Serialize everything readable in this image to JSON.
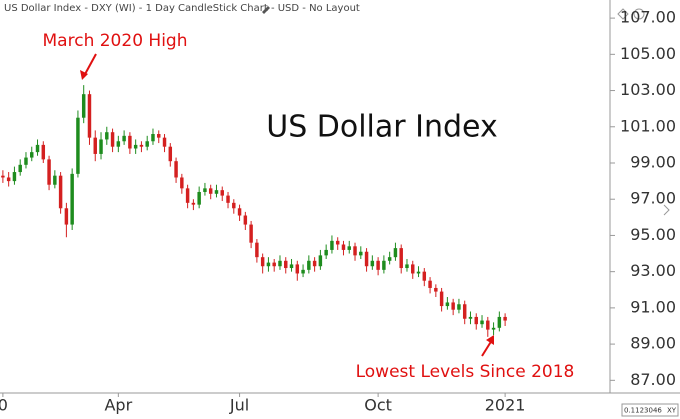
{
  "chart_data": {
    "type": "candlestick",
    "header": "US Dollar Index - DXY (WI) - 1 Day CandleStick Chart - USD - No Layout",
    "title": "US Dollar Index",
    "annotations": [
      "March 2020 High",
      "Lowest Levels Since 2018"
    ],
    "corner_text": [
      "0.1123046",
      "XY"
    ],
    "up_color": "#1e8c1e",
    "down_color": "#d42020",
    "categories": [
      "0",
      null,
      null,
      null,
      null,
      null,
      null,
      null,
      null,
      null,
      null,
      null,
      null,
      null,
      null,
      null,
      null,
      null,
      null,
      null,
      "Apr",
      null,
      null,
      null,
      null,
      null,
      null,
      null,
      null,
      null,
      null,
      null,
      null,
      null,
      null,
      null,
      null,
      null,
      null,
      null,
      null,
      "Jul",
      null,
      null,
      null,
      null,
      null,
      null,
      null,
      null,
      null,
      null,
      null,
      null,
      null,
      null,
      null,
      null,
      null,
      null,
      null,
      null,
      null,
      null,
      null,
      "Oct",
      null,
      null,
      null,
      null,
      null,
      null,
      null,
      null,
      null,
      null,
      null,
      null,
      null,
      null,
      null,
      null,
      null,
      null,
      null,
      null,
      null,
      "2021"
    ],
    "open": [
      98.3,
      98.2,
      98.0,
      98.5,
      98.9,
      99.3,
      99.6,
      100.0,
      99.2,
      97.8,
      98.3,
      96.5,
      95.6,
      98.4,
      101.5,
      102.8,
      100.4,
      99.5,
      100.3,
      100.7,
      99.9,
      100.2,
      100.5,
      99.8,
      100.0,
      99.9,
      100.2,
      100.6,
      100.4,
      99.9,
      99.1,
      98.2,
      97.6,
      96.8,
      96.7,
      97.4,
      97.6,
      97.3,
      97.5,
      97.2,
      96.8,
      96.5,
      96.1,
      95.6,
      94.6,
      93.8,
      93.3,
      93.5,
      93.3,
      93.6,
      93.2,
      93.4,
      92.9,
      93.1,
      93.6,
      93.3,
      93.9,
      94.2,
      94.7,
      94.5,
      94.2,
      94.4,
      93.9,
      94.1,
      93.3,
      93.6,
      93.1,
      93.6,
      93.8,
      94.3,
      93.2,
      93.4,
      92.9,
      93.0,
      92.5,
      92.1,
      91.9,
      91.1,
      91.3,
      90.9,
      91.2,
      90.4,
      90.5,
      90.1,
      90.3,
      89.8,
      89.9,
      90.5
    ],
    "high": [
      98.6,
      98.5,
      98.8,
      99.2,
      99.6,
      99.9,
      100.3,
      100.2,
      99.4,
      98.6,
      98.5,
      96.8,
      98.7,
      101.9,
      103.3,
      103.0,
      100.8,
      100.7,
      101.0,
      100.9,
      100.5,
      100.8,
      100.7,
      100.3,
      100.2,
      100.5,
      100.9,
      100.8,
      100.6,
      100.1,
      99.3,
      98.4,
      97.8,
      97.0,
      97.7,
      97.9,
      97.8,
      97.8,
      97.7,
      97.4,
      97.0,
      96.7,
      96.3,
      95.8,
      94.8,
      94.0,
      93.8,
      93.7,
      93.9,
      93.8,
      93.7,
      93.6,
      93.4,
      93.9,
      93.8,
      94.2,
      94.5,
      95.0,
      94.9,
      94.7,
      94.7,
      94.6,
      94.4,
      94.3,
      93.9,
      93.8,
      93.9,
      94.1,
      94.6,
      94.5,
      93.7,
      93.6,
      93.3,
      93.2,
      92.7,
      92.3,
      92.1,
      91.6,
      91.5,
      91.5,
      91.4,
      90.8,
      90.7,
      90.6,
      90.5,
      90.2,
      90.8,
      90.7
    ],
    "low": [
      97.9,
      97.7,
      97.8,
      98.3,
      98.7,
      99.1,
      99.4,
      99.0,
      97.5,
      97.6,
      96.2,
      94.9,
      95.3,
      98.2,
      101.2,
      100.0,
      99.1,
      99.2,
      100.0,
      99.6,
      99.6,
      100.0,
      99.5,
      99.5,
      99.6,
      99.7,
      100.0,
      100.1,
      99.6,
      98.8,
      97.9,
      97.3,
      96.5,
      96.4,
      96.5,
      97.2,
      97.0,
      97.1,
      96.9,
      96.5,
      96.2,
      95.8,
      95.3,
      94.3,
      93.5,
      92.9,
      93.0,
      93.0,
      93.1,
      92.9,
      93.0,
      92.5,
      92.7,
      92.9,
      93.0,
      93.1,
      93.7,
      94.0,
      94.2,
      93.9,
      94.0,
      93.6,
      93.7,
      93.0,
      93.1,
      92.8,
      92.9,
      93.4,
      93.6,
      92.9,
      93.0,
      92.6,
      92.7,
      92.2,
      91.8,
      91.6,
      90.8,
      90.9,
      90.6,
      90.7,
      90.1,
      90.1,
      89.8,
      89.9,
      89.4,
      89.5,
      89.7,
      90.0
    ],
    "close": [
      98.2,
      98.0,
      98.5,
      98.9,
      99.3,
      99.6,
      100.0,
      99.2,
      97.8,
      98.3,
      96.5,
      95.6,
      98.4,
      101.5,
      102.8,
      100.4,
      99.5,
      100.3,
      100.7,
      99.9,
      100.2,
      100.5,
      99.8,
      100.0,
      99.9,
      100.2,
      100.6,
      100.4,
      99.9,
      99.1,
      98.2,
      97.6,
      96.8,
      96.7,
      97.4,
      97.6,
      97.3,
      97.5,
      97.2,
      96.8,
      96.5,
      96.1,
      95.6,
      94.6,
      93.8,
      93.3,
      93.5,
      93.3,
      93.6,
      93.2,
      93.4,
      92.9,
      93.1,
      93.6,
      93.3,
      93.9,
      94.2,
      94.7,
      94.5,
      94.2,
      94.4,
      93.9,
      94.1,
      93.3,
      93.6,
      93.1,
      93.6,
      93.8,
      94.3,
      93.2,
      93.4,
      92.9,
      93.0,
      92.5,
      92.1,
      91.9,
      91.1,
      91.3,
      90.9,
      91.2,
      90.4,
      90.5,
      90.1,
      90.3,
      89.8,
      89.9,
      90.5,
      90.3
    ],
    "ylim": [
      86.3,
      108.0
    ],
    "yticks": [
      {
        "value": 87,
        "label": "87.00"
      },
      {
        "value": 89,
        "label": "89.00"
      },
      {
        "value": 91,
        "label": "91.00"
      },
      {
        "value": 93,
        "label": "93.00"
      },
      {
        "value": 95,
        "label": "95.00"
      },
      {
        "value": 97,
        "label": "97.00"
      },
      {
        "value": 99,
        "label": "99.00"
      },
      {
        "value": 101,
        "label": "101.00"
      },
      {
        "value": 103,
        "label": "103.00"
      },
      {
        "value": 105,
        "label": "105.00"
      },
      {
        "value": 107,
        "label": "107.00"
      }
    ]
  }
}
